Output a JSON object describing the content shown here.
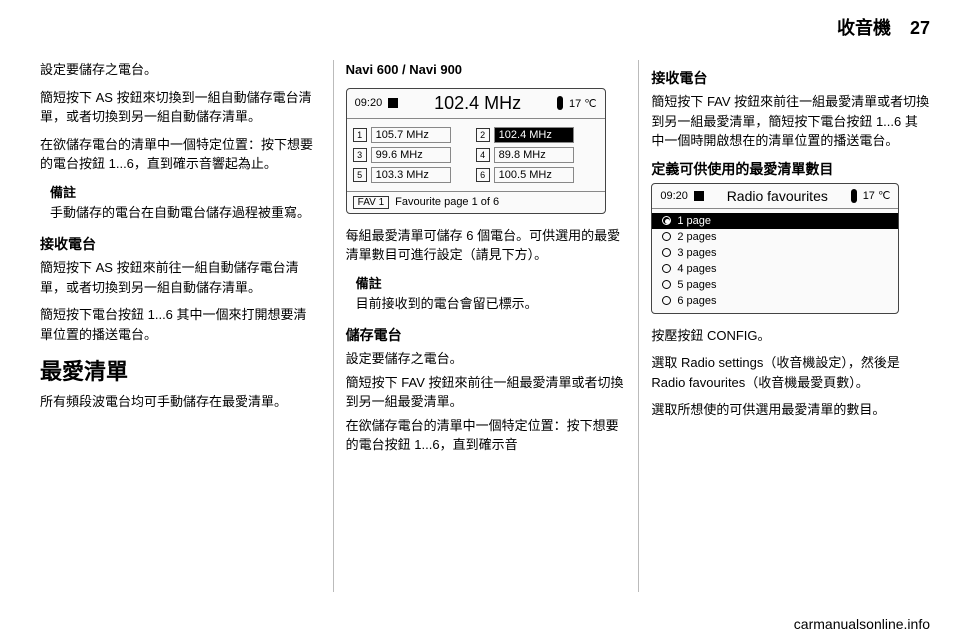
{
  "header": {
    "section_title": "收音機",
    "page_number": "27"
  },
  "col1": {
    "p1": "設定要儲存之電台。",
    "p2": "簡短按下 AS 按鈕來切換到一組自動儲存電台清單，或者切換到另一組自動儲存清單。",
    "p3": "在欲儲存電台的清單中一個特定位置：按下想要的電台按鈕 1...6，直到確示音響起為止。",
    "note1_label": "備註",
    "note1_text": "手動儲存的電台在自動電台儲存過程被重寫。",
    "h3_1": "接收電台",
    "p4": "簡短按下 AS 按鈕來前往一組自動儲存電台清單，或者切換到另一組自動儲存清單。",
    "p5": "簡短按下電台按鈕 1...6 其中一個來打開想要清單位置的播送電台。",
    "h2_1": "最愛清單",
    "p6": "所有頻段波電台均可手動儲存在最愛清單。"
  },
  "col2": {
    "model_title": "Navi 600 / Navi 900",
    "radio": {
      "time": "09:20",
      "temp": "17 ℃",
      "main_freq": "102.4 MHz",
      "presets": [
        {
          "n": "1",
          "label": "105.7 MHz"
        },
        {
          "n": "2",
          "label": "102.4 MHz",
          "active": true
        },
        {
          "n": "3",
          "label": "99.6 MHz"
        },
        {
          "n": "4",
          "label": "89.8 MHz"
        },
        {
          "n": "5",
          "label": "103.3 MHz"
        },
        {
          "n": "6",
          "label": "100.5 MHz"
        }
      ],
      "fav_btn": "FAV 1",
      "fav_label": "Favourite page 1 of 6"
    },
    "p1": "每組最愛清單可儲存 6 個電台。可供選用的最愛清單數目可進行設定（請見下方）。",
    "note_label": "備註",
    "note_text": "目前接收到的電台會留已標示。",
    "h3_1": "儲存電台",
    "p2": "設定要儲存之電台。",
    "p3": "簡短按下 FAV 按鈕來前往一組最愛清單或者切換到另一組最愛清單。",
    "p4": "在欲儲存電台的清單中一個特定位置：按下想要的電台按鈕 1...6，直到確示音"
  },
  "col3": {
    "h3_1": "接收電台",
    "p1": "簡短按下 FAV 按鈕來前往一組最愛清單或者切換到另一組最愛清單，簡短按下電台按鈕 1...6 其中一個時開啟想在的清單位置的播送電台。",
    "h3_2": "定義可供使用的最愛清單數目",
    "favs": {
      "time": "09:20",
      "temp": "17 ℃",
      "title": "Radio favourites",
      "items": [
        {
          "label": "1 page",
          "selected": true
        },
        {
          "label": "2 pages"
        },
        {
          "label": "3 pages"
        },
        {
          "label": "4 pages"
        },
        {
          "label": "5 pages"
        },
        {
          "label": "6 pages"
        }
      ]
    },
    "p2": "按壓按鈕 CONFIG。",
    "p3": "選取 Radio settings（收音機設定），然後是 Radio favourites（收音機最愛頁數）。",
    "p4": "選取所想使的可供選用最愛清單的數目。"
  },
  "footer": {
    "url": "carmanualsonline.info"
  }
}
